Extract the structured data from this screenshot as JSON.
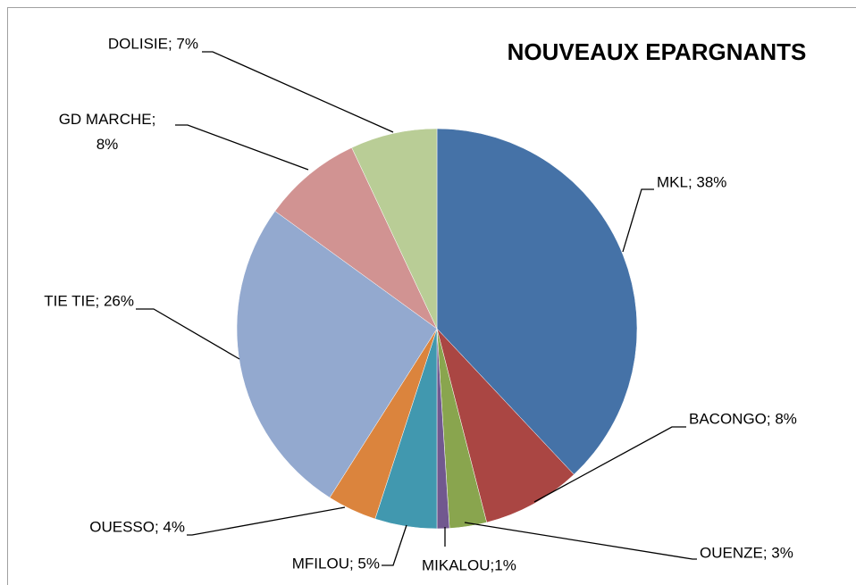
{
  "chart_data": {
    "type": "pie",
    "title": "NOUVEAUX EPARGNANTS",
    "values": [
      38,
      8,
      3,
      1,
      5,
      4,
      26,
      8,
      7
    ],
    "value_labels": [
      "MKL; 38%",
      "BACONGO; 8%",
      "OUENZE; 3%",
      "MIKALOU;1%",
      "MFILOU; 5%",
      "OUESSO; 4%",
      "TIE TIE; 26%",
      "GD MARCHE;\n8%",
      "DOLISIE; 7%"
    ],
    "colors": [
      "#4572a7",
      "#aa4643",
      "#89a54e",
      "#71588f",
      "#4198af",
      "#db843d",
      "#93a9cf",
      "#d19392",
      "#b9cd96"
    ]
  }
}
